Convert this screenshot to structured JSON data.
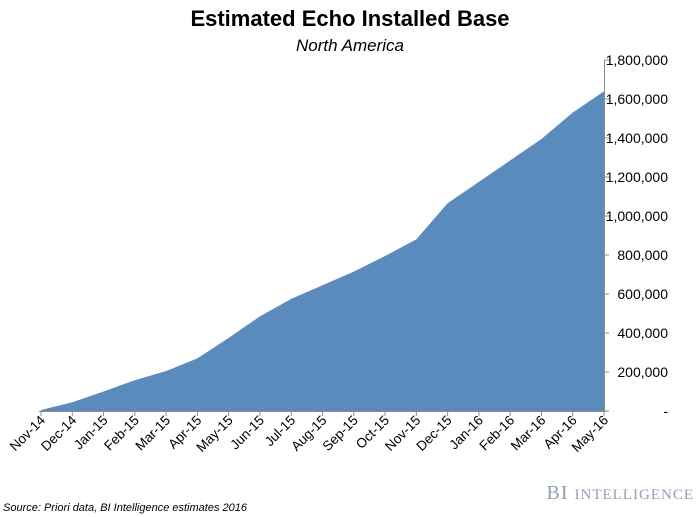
{
  "chart_data": {
    "type": "area",
    "title": "Estimated Echo Installed Base",
    "subtitle": "North America",
    "categories": [
      "Nov-14",
      "Dec-14",
      "Jan-15",
      "Feb-15",
      "Mar-15",
      "Apr-15",
      "May-15",
      "Jun-15",
      "Jul-15",
      "Aug-15",
      "Sep-15",
      "Oct-15",
      "Nov-15",
      "Dec-15",
      "Jan-16",
      "Feb-16",
      "Mar-16",
      "Apr-16",
      "May-16"
    ],
    "values": [
      5000,
      45000,
      100000,
      158000,
      205000,
      270000,
      375000,
      485000,
      575000,
      645000,
      715000,
      795000,
      880000,
      1065000,
      1175000,
      1285000,
      1395000,
      1530000,
      1640000
    ],
    "ylim": [
      0,
      1800000
    ],
    "yticks": [
      0,
      200000,
      400000,
      600000,
      800000,
      1000000,
      1200000,
      1400000,
      1600000,
      1800000
    ],
    "ytick_labels": [
      "-",
      "200,000",
      "400,000",
      "600,000",
      "800,000",
      "1,000,000",
      "1,200,000",
      "1,400,000",
      "1,600,000",
      "1,800,000"
    ],
    "y_axis_side": "right",
    "grid": false,
    "color": "#5b8bbd"
  },
  "source": "Source: Priori data, BI Intelligence estimates 2016",
  "brand": {
    "bi": "BI",
    "intelligence": "Intelligence"
  }
}
